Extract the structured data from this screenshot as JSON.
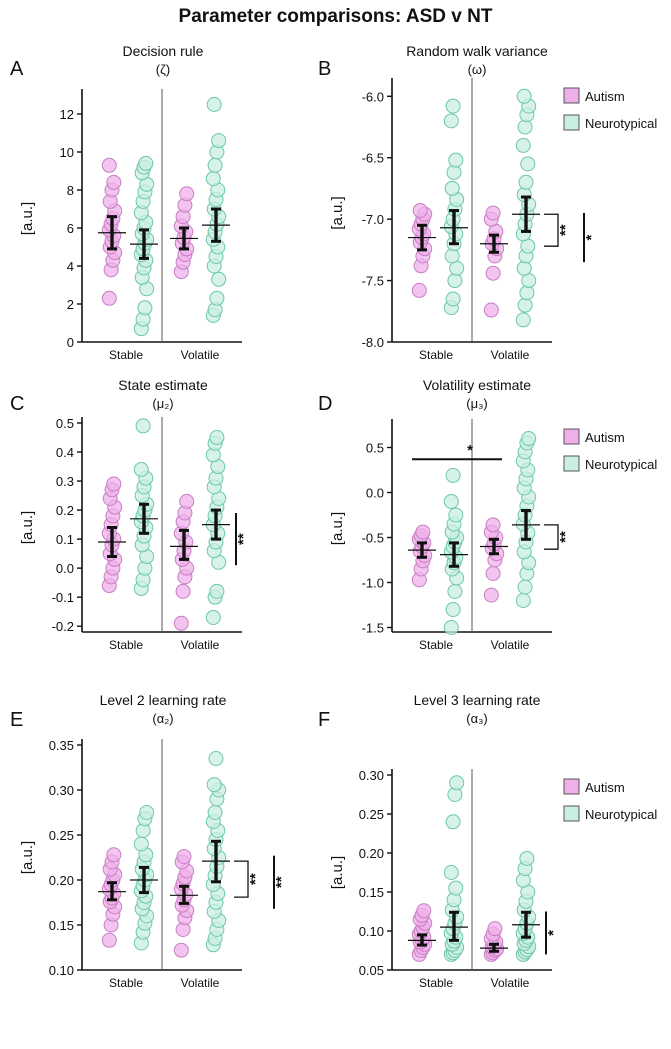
{
  "figure_title": "Parameter comparisons: ASD v NT",
  "legend": {
    "autism": "Autism",
    "neurotypical": "Neurotypical"
  },
  "colors": {
    "autism_fill": "#efb0ea",
    "autism_stroke": "#c77fc4",
    "nt_fill": "#c9efe2",
    "nt_stroke": "#6cc7a8",
    "ink": "#111111"
  },
  "chart_data": [
    {
      "panel": "A",
      "type": "scatter",
      "title": "Decision rule",
      "subtitle": "(ζ)",
      "ylabel": "[a.u.]",
      "ylim": [
        0,
        13
      ],
      "yticks": [
        0,
        2,
        4,
        6,
        8,
        10,
        12
      ],
      "ytick_labels": [
        "0",
        "2",
        "4",
        "6",
        "8",
        "10",
        "12"
      ],
      "categories": [
        "Stable",
        "Volatile"
      ],
      "legend": false,
      "series": [
        {
          "name": "Autism",
          "condition": "Stable",
          "mean": 5.75,
          "ci": [
            4.9,
            6.6
          ],
          "points": [
            2.3,
            3.8,
            4.3,
            4.7,
            5.0,
            5.3,
            5.6,
            5.9,
            6.2,
            6.5,
            6.9,
            7.4,
            8.0,
            8.4,
            9.3
          ]
        },
        {
          "name": "Neurotypical",
          "condition": "Stable",
          "mean": 5.15,
          "ci": [
            4.4,
            5.9
          ],
          "points": [
            0.7,
            1.2,
            1.8,
            2.8,
            3.4,
            3.9,
            4.3,
            4.6,
            4.9,
            5.2,
            5.4,
            5.7,
            6.0,
            6.3,
            6.8,
            7.4,
            7.9,
            8.3,
            8.9,
            9.2,
            9.4
          ]
        },
        {
          "name": "Autism",
          "condition": "Volatile",
          "mean": 5.45,
          "ci": [
            4.9,
            6.0
          ],
          "points": [
            3.7,
            4.2,
            4.6,
            4.9,
            5.2,
            5.5,
            5.8,
            6.1,
            6.6,
            7.2,
            7.8
          ]
        },
        {
          "name": "Neurotypical",
          "condition": "Volatile",
          "mean": 6.15,
          "ci": [
            5.3,
            7.0
          ],
          "points": [
            1.4,
            1.7,
            2.3,
            3.3,
            4.0,
            4.5,
            5.0,
            5.4,
            5.8,
            6.2,
            6.6,
            7.0,
            7.5,
            8.0,
            8.6,
            9.3,
            10.0,
            10.6,
            12.5
          ]
        }
      ],
      "significance": []
    },
    {
      "panel": "B",
      "type": "scatter",
      "title": "Random walk variance",
      "subtitle": "(ω)",
      "ylabel": "[a.u.]",
      "ylim": [
        -8.0,
        -5.9
      ],
      "yticks": [
        -8.0,
        -7.5,
        -7.0,
        -6.5,
        -6.0
      ],
      "ytick_labels": [
        "-8.0",
        "-7.5",
        "-7.0",
        "-6.5",
        "-6.0"
      ],
      "categories": [
        "Stable",
        "Volatile"
      ],
      "legend": true,
      "series": [
        {
          "name": "Autism",
          "condition": "Stable",
          "mean": -7.15,
          "ci": [
            -7.25,
            -7.05
          ],
          "points": [
            -7.58,
            -7.38,
            -7.3,
            -7.24,
            -7.19,
            -7.15,
            -7.12,
            -7.08,
            -7.04,
            -7.0,
            -6.96,
            -6.93
          ]
        },
        {
          "name": "Neurotypical",
          "condition": "Stable",
          "mean": -7.07,
          "ci": [
            -7.2,
            -6.93
          ],
          "points": [
            -7.72,
            -7.65,
            -7.5,
            -7.4,
            -7.3,
            -7.2,
            -7.12,
            -7.06,
            -7.0,
            -6.92,
            -6.84,
            -6.75,
            -6.62,
            -6.52,
            -6.2,
            -6.08
          ]
        },
        {
          "name": "Autism",
          "condition": "Volatile",
          "mean": -7.2,
          "ci": [
            -7.27,
            -7.13
          ],
          "points": [
            -7.74,
            -7.44,
            -7.3,
            -7.24,
            -7.2,
            -7.16,
            -7.1,
            -7.0,
            -6.95
          ]
        },
        {
          "name": "Neurotypical",
          "condition": "Volatile",
          "mean": -6.96,
          "ci": [
            -7.1,
            -6.82
          ],
          "points": [
            -7.82,
            -7.7,
            -7.6,
            -7.5,
            -7.4,
            -7.3,
            -7.22,
            -7.12,
            -7.04,
            -6.96,
            -6.88,
            -6.8,
            -6.7,
            -6.55,
            -6.4,
            -6.25,
            -6.15,
            -6.08,
            -6.0
          ]
        }
      ],
      "significance": [
        {
          "label": "**",
          "type": "bracket",
          "from": -6.96,
          "to": -7.22
        },
        {
          "label": "*",
          "type": "line",
          "from": -6.95,
          "to": -7.35
        }
      ]
    },
    {
      "panel": "C",
      "type": "scatter",
      "title": "State estimate",
      "subtitle": "(μ₂)",
      "ylabel": "[a.u.]",
      "ylim": [
        -0.22,
        0.5
      ],
      "yticks": [
        -0.2,
        -0.1,
        0.0,
        0.1,
        0.2,
        0.3,
        0.4,
        0.5
      ],
      "ytick_labels": [
        "-0.2",
        "-0.1",
        "0.0",
        "0.1",
        "0.2",
        "0.3",
        "0.4",
        "0.5"
      ],
      "categories": [
        "Stable",
        "Volatile"
      ],
      "legend": false,
      "series": [
        {
          "name": "Autism",
          "condition": "Stable",
          "mean": 0.09,
          "ci": [
            0.04,
            0.14
          ],
          "points": [
            -0.06,
            -0.03,
            0.0,
            0.03,
            0.05,
            0.08,
            0.1,
            0.12,
            0.15,
            0.18,
            0.21,
            0.24,
            0.27,
            0.29
          ]
        },
        {
          "name": "Neurotypical",
          "condition": "Stable",
          "mean": 0.17,
          "ci": [
            0.12,
            0.22
          ],
          "points": [
            -0.07,
            -0.04,
            0.0,
            0.04,
            0.08,
            0.11,
            0.14,
            0.16,
            0.18,
            0.2,
            0.22,
            0.25,
            0.28,
            0.31,
            0.34,
            0.49
          ]
        },
        {
          "name": "Autism",
          "condition": "Volatile",
          "mean": 0.075,
          "ci": [
            0.03,
            0.13
          ],
          "points": [
            -0.19,
            -0.08,
            -0.03,
            0.0,
            0.03,
            0.06,
            0.09,
            0.12,
            0.16,
            0.19,
            0.23
          ]
        },
        {
          "name": "Neurotypical",
          "condition": "Volatile",
          "mean": 0.15,
          "ci": [
            0.1,
            0.2
          ],
          "points": [
            -0.17,
            -0.1,
            -0.08,
            0.02,
            0.06,
            0.09,
            0.12,
            0.15,
            0.18,
            0.21,
            0.24,
            0.28,
            0.31,
            0.35,
            0.39,
            0.43,
            0.45
          ]
        }
      ],
      "significance": [
        {
          "label": "**",
          "type": "line",
          "from": 0.19,
          "to": 0.01
        }
      ]
    },
    {
      "panel": "D",
      "type": "scatter",
      "title": "Volatility estimate",
      "subtitle": "(μ₃)",
      "ylabel": "[a.u.]",
      "ylim": [
        -1.55,
        0.75
      ],
      "yticks": [
        -1.5,
        -1.0,
        -0.5,
        0.0,
        0.5
      ],
      "ytick_labels": [
        "-1.5",
        "-1.0",
        "-0.5",
        "0.0",
        "0.5"
      ],
      "categories": [
        "Stable",
        "Volatile"
      ],
      "legend": true,
      "series": [
        {
          "name": "Autism",
          "condition": "Stable",
          "mean": -0.64,
          "ci": [
            -0.72,
            -0.56
          ],
          "points": [
            -0.97,
            -0.85,
            -0.76,
            -0.7,
            -0.65,
            -0.6,
            -0.56,
            -0.52,
            -0.48,
            -0.44
          ]
        },
        {
          "name": "Neurotypical",
          "condition": "Stable",
          "mean": -0.69,
          "ci": [
            -0.82,
            -0.56
          ],
          "points": [
            -1.5,
            -1.3,
            -1.1,
            -0.95,
            -0.85,
            -0.78,
            -0.72,
            -0.66,
            -0.6,
            -0.55,
            -0.5,
            -0.44,
            -0.35,
            -0.25,
            -0.1,
            0.19
          ]
        },
        {
          "name": "Autism",
          "condition": "Volatile",
          "mean": -0.6,
          "ci": [
            -0.68,
            -0.52
          ],
          "points": [
            -1.14,
            -0.9,
            -0.75,
            -0.68,
            -0.62,
            -0.57,
            -0.5,
            -0.44,
            -0.36
          ]
        },
        {
          "name": "Neurotypical",
          "condition": "Volatile",
          "mean": -0.36,
          "ci": [
            -0.52,
            -0.2
          ],
          "points": [
            -1.2,
            -1.05,
            -0.9,
            -0.78,
            -0.66,
            -0.55,
            -0.45,
            -0.35,
            -0.25,
            -0.15,
            -0.05,
            0.05,
            0.15,
            0.25,
            0.35,
            0.45,
            0.55,
            0.6
          ]
        }
      ],
      "significance": [
        {
          "label": "*",
          "type": "hline",
          "between": "Stable-Volatile",
          "at": 0.37
        },
        {
          "label": "**",
          "type": "bracket",
          "from": -0.36,
          "to": -0.63
        }
      ]
    },
    {
      "panel": "E",
      "type": "scatter",
      "title": "Level 2 learning rate",
      "subtitle": "(α₂)",
      "ylabel": "[a.u.]",
      "ylim": [
        0.1,
        0.35
      ],
      "yticks": [
        0.1,
        0.15,
        0.2,
        0.25,
        0.3,
        0.35
      ],
      "ytick_labels": [
        "0.10",
        "0.15",
        "0.20",
        "0.25",
        "0.30",
        "0.35"
      ],
      "categories": [
        "Stable",
        "Volatile"
      ],
      "legend": false,
      "series": [
        {
          "name": "Autism",
          "condition": "Stable",
          "mean": 0.187,
          "ci": [
            0.178,
            0.197
          ],
          "points": [
            0.133,
            0.15,
            0.162,
            0.17,
            0.176,
            0.18,
            0.185,
            0.19,
            0.195,
            0.2,
            0.206,
            0.212,
            0.22,
            0.228
          ]
        },
        {
          "name": "Neurotypical",
          "condition": "Stable",
          "mean": 0.2,
          "ci": [
            0.186,
            0.214
          ],
          "points": [
            0.13,
            0.142,
            0.152,
            0.16,
            0.168,
            0.175,
            0.182,
            0.188,
            0.194,
            0.2,
            0.206,
            0.212,
            0.22,
            0.228,
            0.24,
            0.255,
            0.268,
            0.275
          ]
        },
        {
          "name": "Autism",
          "condition": "Volatile",
          "mean": 0.183,
          "ci": [
            0.174,
            0.193
          ],
          "points": [
            0.122,
            0.145,
            0.158,
            0.166,
            0.172,
            0.178,
            0.184,
            0.19,
            0.196,
            0.203,
            0.21,
            0.22,
            0.226
          ]
        },
        {
          "name": "Neurotypical",
          "condition": "Volatile",
          "mean": 0.221,
          "ci": [
            0.198,
            0.243
          ],
          "points": [
            0.128,
            0.135,
            0.145,
            0.155,
            0.165,
            0.175,
            0.185,
            0.195,
            0.205,
            0.215,
            0.225,
            0.235,
            0.245,
            0.255,
            0.265,
            0.275,
            0.29,
            0.3,
            0.306,
            0.335
          ]
        }
      ],
      "significance": [
        {
          "label": "**",
          "type": "bracket",
          "from": 0.221,
          "to": 0.181
        },
        {
          "label": "**",
          "type": "line",
          "from": 0.227,
          "to": 0.168
        }
      ]
    },
    {
      "panel": "F",
      "type": "scatter",
      "title": "Level 3 learning rate",
      "subtitle": "(α₃)",
      "ylabel": "[a.u.]",
      "ylim": [
        0.05,
        0.3
      ],
      "yticks": [
        0.05,
        0.1,
        0.15,
        0.2,
        0.25,
        0.3
      ],
      "ytick_labels": [
        "0.05",
        "0.10",
        "0.15",
        "0.20",
        "0.25",
        "0.30"
      ],
      "categories": [
        "Stable",
        "Volatile"
      ],
      "legend": true,
      "series": [
        {
          "name": "Autism",
          "condition": "Stable",
          "mean": 0.088,
          "ci": [
            0.082,
            0.095
          ],
          "points": [
            0.07,
            0.075,
            0.079,
            0.083,
            0.086,
            0.089,
            0.092,
            0.096,
            0.1,
            0.105,
            0.11,
            0.115,
            0.12,
            0.126
          ]
        },
        {
          "name": "Neurotypical",
          "condition": "Stable",
          "mean": 0.105,
          "ci": [
            0.088,
            0.124
          ],
          "points": [
            0.07,
            0.072,
            0.075,
            0.079,
            0.083,
            0.087,
            0.092,
            0.097,
            0.103,
            0.11,
            0.118,
            0.127,
            0.14,
            0.155,
            0.175,
            0.24,
            0.275,
            0.29
          ]
        },
        {
          "name": "Autism",
          "condition": "Volatile",
          "mean": 0.078,
          "ci": [
            0.074,
            0.083
          ],
          "points": [
            0.07,
            0.072,
            0.075,
            0.077,
            0.08,
            0.083,
            0.086,
            0.09,
            0.096,
            0.103
          ]
        },
        {
          "name": "Neurotypical",
          "condition": "Volatile",
          "mean": 0.108,
          "ci": [
            0.092,
            0.124
          ],
          "points": [
            0.07,
            0.073,
            0.076,
            0.08,
            0.084,
            0.088,
            0.092,
            0.097,
            0.103,
            0.11,
            0.118,
            0.127,
            0.138,
            0.15,
            0.165,
            0.18,
            0.193
          ]
        }
      ],
      "significance": [
        {
          "label": "*",
          "type": "line",
          "from": 0.125,
          "to": 0.07
        }
      ]
    }
  ]
}
